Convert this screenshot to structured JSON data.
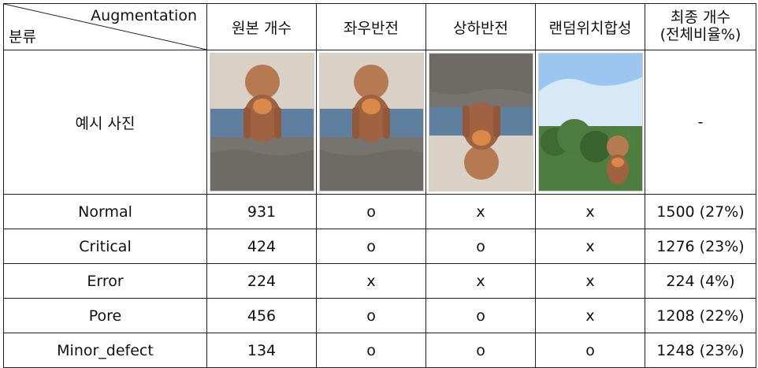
{
  "header": {
    "augmentation": "Augmentation",
    "category": "분류",
    "original_count": "원본 개수",
    "horizontal_flip": "좌우반전",
    "vertical_flip": "상하반전",
    "random_position_composite": "랜덤위치합성",
    "final_count_line1": "최종 개수",
    "final_count_line2": "(전체비율%)"
  },
  "example_row": {
    "label": "예시 사진",
    "final_value": "-",
    "images": [
      {
        "icon": "dog-photo-original"
      },
      {
        "icon": "dog-photo-horizontal-flip"
      },
      {
        "icon": "dog-photo-vertical-flip"
      },
      {
        "icon": "dog-photo-random-composite"
      }
    ]
  },
  "rows": [
    {
      "category": "Normal",
      "original": "931",
      "hflip": "o",
      "vflip": "x",
      "random": "x",
      "final": "1500 (27%)"
    },
    {
      "category": "Critical",
      "original": "424",
      "hflip": "o",
      "vflip": "o",
      "random": "x",
      "final": "1276 (23%)"
    },
    {
      "category": "Error",
      "original": "224",
      "hflip": "x",
      "vflip": "x",
      "random": "x",
      "final": "224 (4%)"
    },
    {
      "category": "Pore",
      "original": "456",
      "hflip": "o",
      "vflip": "o",
      "random": "x",
      "final": "1208 (22%)"
    },
    {
      "category": "Minor_defect",
      "original": "134",
      "hflip": "o",
      "vflip": "o",
      "random": "o",
      "final": "1248 (23%)"
    }
  ],
  "colors": {
    "border": "#202020",
    "text": "#111111"
  }
}
